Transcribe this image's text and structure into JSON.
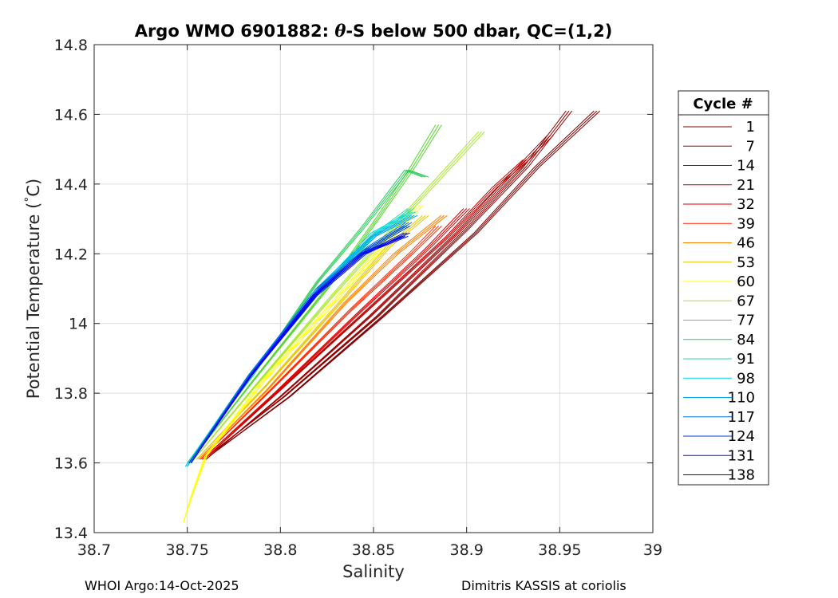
{
  "chart_data": {
    "type": "line",
    "title_prefix": "Argo WMO 6901882: ",
    "title_symbol": "θ",
    "title_suffix": "-S below 500 dbar,  QC=(1,2)",
    "xlabel": "Salinity",
    "ylabel_main": "Potential Temperature (",
    "ylabel_degree": "°",
    "ylabel_unit": "C)",
    "xlim": [
      38.7,
      39.0
    ],
    "ylim": [
      13.4,
      14.8
    ],
    "xticks": [
      38.7,
      38.75,
      38.8,
      38.85,
      38.9,
      38.95,
      39.0
    ],
    "xtick_labels": [
      "38.7",
      "38.75",
      "38.8",
      "38.85",
      "38.9",
      "38.95",
      "39"
    ],
    "yticks": [
      13.4,
      13.6,
      13.8,
      14.0,
      14.2,
      14.4,
      14.6,
      14.8
    ],
    "ytick_labels": [
      "13.4",
      "13.6",
      "13.8",
      "14",
      "14.2",
      "14.4",
      "14.6",
      "14.8"
    ],
    "grid": true,
    "legend_title": "Cycle #",
    "legend_position": "outside-right",
    "series": [
      {
        "name": "1",
        "color": "#7f0000",
        "s": [
          38.762,
          38.805,
          38.855,
          38.905,
          38.938,
          38.97
        ],
        "t": [
          13.62,
          13.79,
          14.02,
          14.26,
          14.45,
          14.61
        ]
      },
      {
        "name": "7",
        "color": "#8f0000",
        "s": [
          38.761,
          38.802,
          38.852,
          38.9,
          38.932,
          38.955
        ],
        "t": [
          13.62,
          13.79,
          14.02,
          14.27,
          14.45,
          14.61
        ]
      },
      {
        "name": "14",
        "color": "#a30000",
        "s": [
          38.76,
          38.8,
          38.848,
          38.895,
          38.925,
          38.945
        ],
        "t": [
          13.61,
          13.79,
          14.02,
          14.26,
          14.43,
          14.54
        ]
      },
      {
        "name": "21",
        "color": "#bc0000",
        "s": [
          38.759,
          38.798,
          38.845,
          38.89,
          38.915,
          38.932
        ],
        "t": [
          13.61,
          13.8,
          14.03,
          14.25,
          14.39,
          14.47
        ]
      },
      {
        "name": "32",
        "color": "#e10000",
        "s": [
          38.758,
          38.797,
          38.842,
          38.88,
          38.9
        ],
        "t": [
          13.61,
          13.8,
          14.03,
          14.22,
          14.33
        ]
      },
      {
        "name": "39",
        "color": "#ff2600",
        "s": [
          38.757,
          38.795,
          38.838,
          38.87,
          38.885
        ],
        "t": [
          13.61,
          13.81,
          14.04,
          14.2,
          14.28
        ]
      },
      {
        "name": "46",
        "color": "#ff8000",
        "s": [
          38.756,
          38.793,
          38.835,
          38.862,
          38.888
        ],
        "t": [
          13.61,
          13.81,
          14.06,
          14.2,
          14.31
        ]
      },
      {
        "name": "53",
        "color": "#e6c800",
        "s": [
          38.755,
          38.792,
          38.832,
          38.858,
          38.878
        ],
        "t": [
          13.61,
          13.82,
          14.06,
          14.22,
          14.31
        ]
      },
      {
        "name": "60",
        "color": "#ffff00",
        "s": [
          38.748,
          38.752,
          38.76,
          38.79,
          38.83,
          38.855,
          38.875
        ],
        "t": [
          13.43,
          13.5,
          13.62,
          13.83,
          14.07,
          14.22,
          14.34
        ]
      },
      {
        "name": "67",
        "color": "#a8e62b",
        "s": [
          38.752,
          38.788,
          38.828,
          38.865,
          38.908
        ],
        "t": [
          13.6,
          13.83,
          14.08,
          14.3,
          14.55
        ]
      },
      {
        "name": "77",
        "color": "#52d629",
        "s": [
          38.751,
          38.786,
          38.825,
          38.852,
          38.87,
          38.885
        ],
        "t": [
          13.6,
          13.84,
          14.1,
          14.3,
          14.44,
          14.57
        ]
      },
      {
        "name": "84",
        "color": "#2bcc5c",
        "s": [
          38.75,
          38.785,
          38.82,
          38.845,
          38.868,
          38.878
        ],
        "t": [
          13.6,
          13.85,
          14.12,
          14.28,
          14.44,
          14.42
        ]
      },
      {
        "name": "91",
        "color": "#2bd6b0",
        "s": [
          38.749,
          38.784,
          38.822,
          38.852,
          38.87
        ],
        "t": [
          13.59,
          13.85,
          14.1,
          14.26,
          14.33
        ]
      },
      {
        "name": "98",
        "color": "#00d9e6",
        "s": [
          38.749,
          38.783,
          38.821,
          38.85,
          38.871
        ],
        "t": [
          13.59,
          13.85,
          14.1,
          14.26,
          14.32
        ]
      },
      {
        "name": "110",
        "color": "#00a6e6",
        "s": [
          38.75,
          38.783,
          38.82,
          38.85,
          38.872
        ],
        "t": [
          13.59,
          13.85,
          14.1,
          14.25,
          14.31
        ]
      },
      {
        "name": "117",
        "color": "#0073e6",
        "s": [
          38.751,
          38.783,
          38.82,
          38.848,
          38.869
        ],
        "t": [
          13.6,
          13.85,
          14.1,
          14.22,
          14.29
        ]
      },
      {
        "name": "124",
        "color": "#0040cc",
        "s": [
          38.751,
          38.784,
          38.82,
          38.846,
          38.868
        ],
        "t": [
          13.6,
          13.85,
          14.09,
          14.21,
          14.28
        ]
      },
      {
        "name": "131",
        "color": "#0018cc",
        "s": [
          38.752,
          38.784,
          38.819,
          38.845,
          38.868
        ],
        "t": [
          13.6,
          13.85,
          14.08,
          14.2,
          14.26
        ]
      },
      {
        "name": "138",
        "color": "#0000ff",
        "s": [
          38.752,
          38.784,
          38.818,
          38.844,
          38.867
        ],
        "t": [
          13.6,
          13.85,
          14.08,
          14.2,
          14.25
        ]
      }
    ]
  },
  "footer": {
    "left": "WHOI Argo:14-Oct-2025",
    "right": "Dimitris KASSIS at coriolis"
  }
}
